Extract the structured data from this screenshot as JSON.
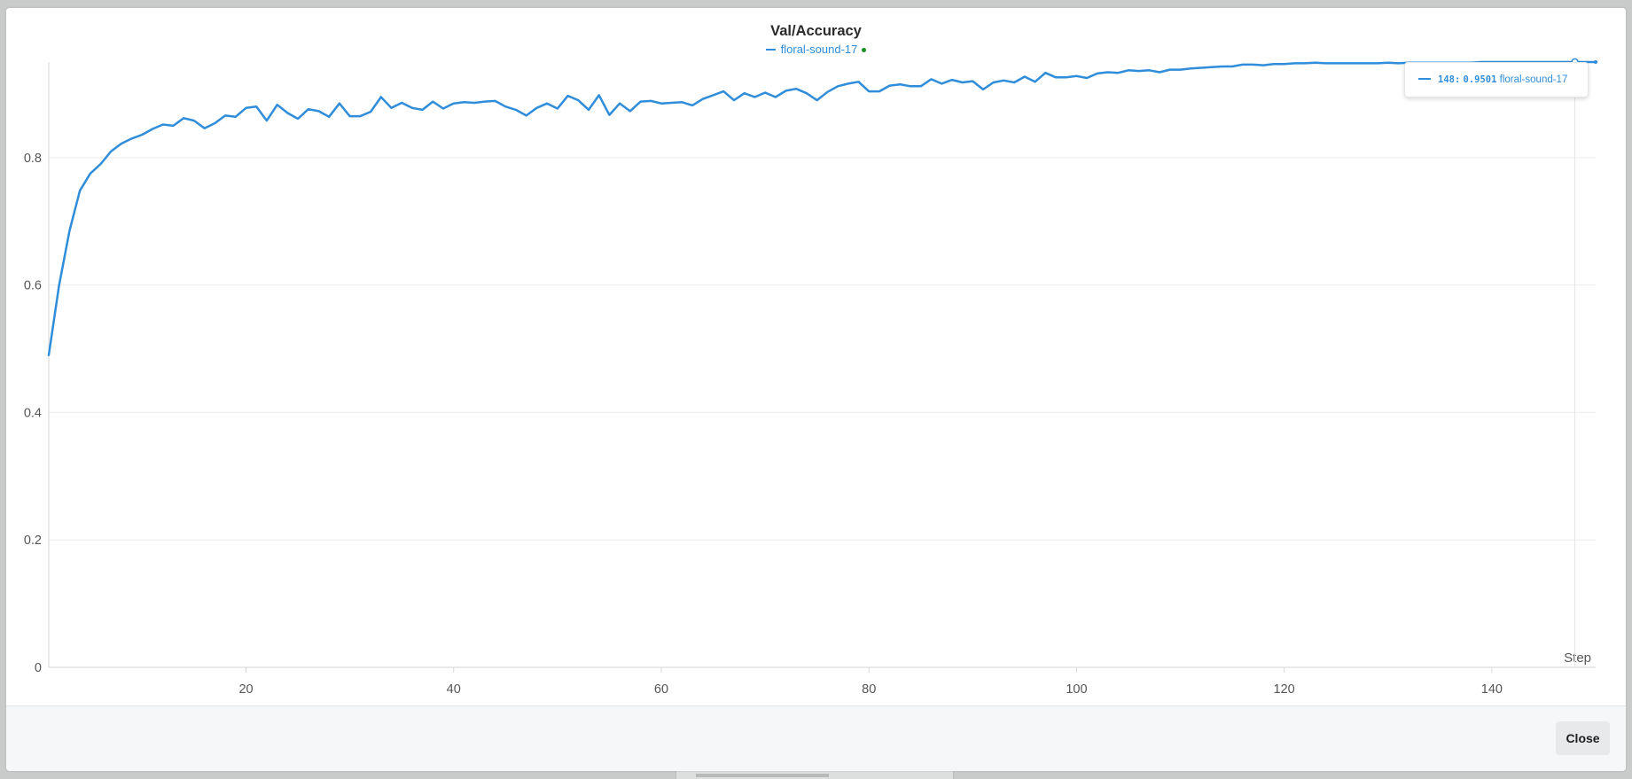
{
  "modal": {
    "close_label": "Close"
  },
  "legend": {
    "run_name": "floral-sound-17",
    "run_status_color": "#14911f"
  },
  "tooltip": {
    "step": "148:",
    "value": "0.9501",
    "run_name": "floral-sound-17"
  },
  "colors": {
    "series": "#2f8dd9",
    "background": "#c9caca"
  },
  "chart_data": {
    "type": "line",
    "title": "Val/Accuracy",
    "xlabel": "Step",
    "ylabel": "",
    "xlim": [
      1,
      150
    ],
    "ylim": [
      0,
      0.95
    ],
    "x_ticks": [
      20,
      40,
      60,
      80,
      100,
      120,
      140
    ],
    "y_ticks": [
      0,
      0.2,
      0.4,
      0.6,
      0.8
    ],
    "y_tick_labels": [
      "0",
      "0.2",
      "0.4",
      "0.6",
      "0.8"
    ],
    "grid": true,
    "legend_position": "top-center",
    "hover_step": 148,
    "series": [
      {
        "name": "floral-sound-17",
        "x": [
          1,
          2,
          3,
          4,
          5,
          6,
          7,
          8,
          9,
          10,
          11,
          12,
          13,
          14,
          15,
          16,
          17,
          18,
          19,
          20,
          21,
          22,
          23,
          24,
          25,
          26,
          27,
          28,
          29,
          30,
          31,
          32,
          33,
          34,
          35,
          36,
          37,
          38,
          39,
          40,
          41,
          42,
          43,
          44,
          45,
          46,
          47,
          48,
          49,
          50,
          51,
          52,
          53,
          54,
          55,
          56,
          57,
          58,
          59,
          60,
          61,
          62,
          63,
          64,
          65,
          66,
          67,
          68,
          69,
          70,
          71,
          72,
          73,
          74,
          75,
          76,
          77,
          78,
          79,
          80,
          81,
          82,
          83,
          84,
          85,
          86,
          87,
          88,
          89,
          90,
          91,
          92,
          93,
          94,
          95,
          96,
          97,
          98,
          99,
          100,
          101,
          102,
          103,
          104,
          105,
          106,
          107,
          108,
          109,
          110,
          111,
          112,
          113,
          114,
          115,
          116,
          117,
          118,
          119,
          120,
          121,
          122,
          123,
          124,
          125,
          126,
          127,
          128,
          129,
          130,
          131,
          132,
          133,
          134,
          135,
          136,
          137,
          138,
          139,
          140,
          141,
          142,
          143,
          144,
          145,
          146,
          147,
          148,
          149,
          150
        ],
        "y": [
          0.49,
          0.6,
          0.685,
          0.748,
          0.775,
          0.79,
          0.81,
          0.822,
          0.83,
          0.836,
          0.845,
          0.852,
          0.85,
          0.862,
          0.858,
          0.846,
          0.854,
          0.866,
          0.864,
          0.878,
          0.88,
          0.858,
          0.883,
          0.87,
          0.861,
          0.876,
          0.873,
          0.864,
          0.885,
          0.865,
          0.865,
          0.872,
          0.895,
          0.878,
          0.886,
          0.878,
          0.875,
          0.888,
          0.877,
          0.885,
          0.887,
          0.886,
          0.888,
          0.889,
          0.88,
          0.875,
          0.866,
          0.878,
          0.885,
          0.877,
          0.897,
          0.89,
          0.875,
          0.898,
          0.867,
          0.885,
          0.873,
          0.888,
          0.889,
          0.885,
          0.886,
          0.887,
          0.882,
          0.892,
          0.898,
          0.904,
          0.89,
          0.901,
          0.895,
          0.902,
          0.895,
          0.905,
          0.908,
          0.901,
          0.89,
          0.903,
          0.912,
          0.916,
          0.919,
          0.904,
          0.904,
          0.913,
          0.915,
          0.912,
          0.912,
          0.923,
          0.916,
          0.922,
          0.918,
          0.92,
          0.907,
          0.918,
          0.921,
          0.918,
          0.927,
          0.919,
          0.933,
          0.926,
          0.926,
          0.928,
          0.925,
          0.932,
          0.934,
          0.933,
          0.937,
          0.936,
          0.937,
          0.934,
          0.938,
          0.938,
          0.94,
          0.941,
          0.942,
          0.943,
          0.943,
          0.946,
          0.946,
          0.945,
          0.947,
          0.947,
          0.948,
          0.948,
          0.949,
          0.948,
          0.948,
          0.948,
          0.948,
          0.948,
          0.948,
          0.949,
          0.948,
          0.949,
          0.949,
          0.949,
          0.949,
          0.949,
          0.949,
          0.949,
          0.95,
          0.95,
          0.95,
          0.95,
          0.95,
          0.95,
          0.95,
          0.95,
          0.95,
          0.9501,
          0.95,
          0.95
        ]
      }
    ]
  }
}
